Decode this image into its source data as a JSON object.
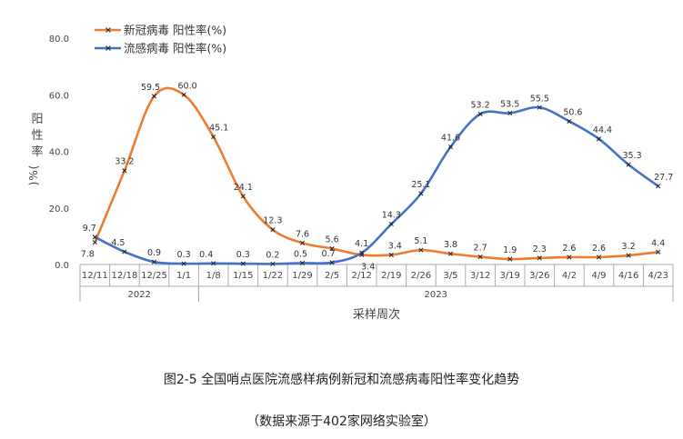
{
  "chart_data": {
    "type": "line",
    "categories": [
      "12/11",
      "12/18",
      "12/25",
      "1/1",
      "1/8",
      "1/15",
      "1/22",
      "1/29",
      "2/5",
      "2/12",
      "2/19",
      "2/26",
      "3/5",
      "3/12",
      "3/19",
      "3/26",
      "4/2",
      "4/9",
      "4/16",
      "4/23"
    ],
    "year_groups": [
      {
        "label": "2022",
        "from": 0,
        "to": 3
      },
      {
        "label": "2023",
        "from": 4,
        "to": 19
      }
    ],
    "series": [
      {
        "name": "新冠病毒 阳性率(%)",
        "color": "#ed7d31",
        "values": [
          7.8,
          33.2,
          59.5,
          60.0,
          45.1,
          24.1,
          12.3,
          7.6,
          5.6,
          3.4,
          3.4,
          5.1,
          3.8,
          2.7,
          1.9,
          2.3,
          2.6,
          2.6,
          3.2,
          4.4
        ]
      },
      {
        "name": "流感病毒 阳性率(%)",
        "color": "#4472c4",
        "values": [
          9.7,
          4.5,
          0.9,
          0.3,
          0.4,
          0.3,
          0.2,
          0.5,
          0.7,
          4.1,
          14.3,
          25.1,
          41.6,
          53.2,
          53.5,
          55.5,
          50.6,
          44.4,
          35.3,
          27.7
        ]
      }
    ],
    "ylim": [
      0,
      80
    ],
    "yticks": [
      "0.0",
      "20.0",
      "40.0",
      "60.0",
      "80.0"
    ],
    "ylabel": "阳性率(%)",
    "xlabel": "采样周次",
    "legend_position": "top-left",
    "grid": false
  },
  "caption": {
    "title": "图2-5 全国哨点医院流感样病例新冠和流感病毒阳性率变化趋势",
    "source": "（数据来源于402家网络实验室）"
  }
}
